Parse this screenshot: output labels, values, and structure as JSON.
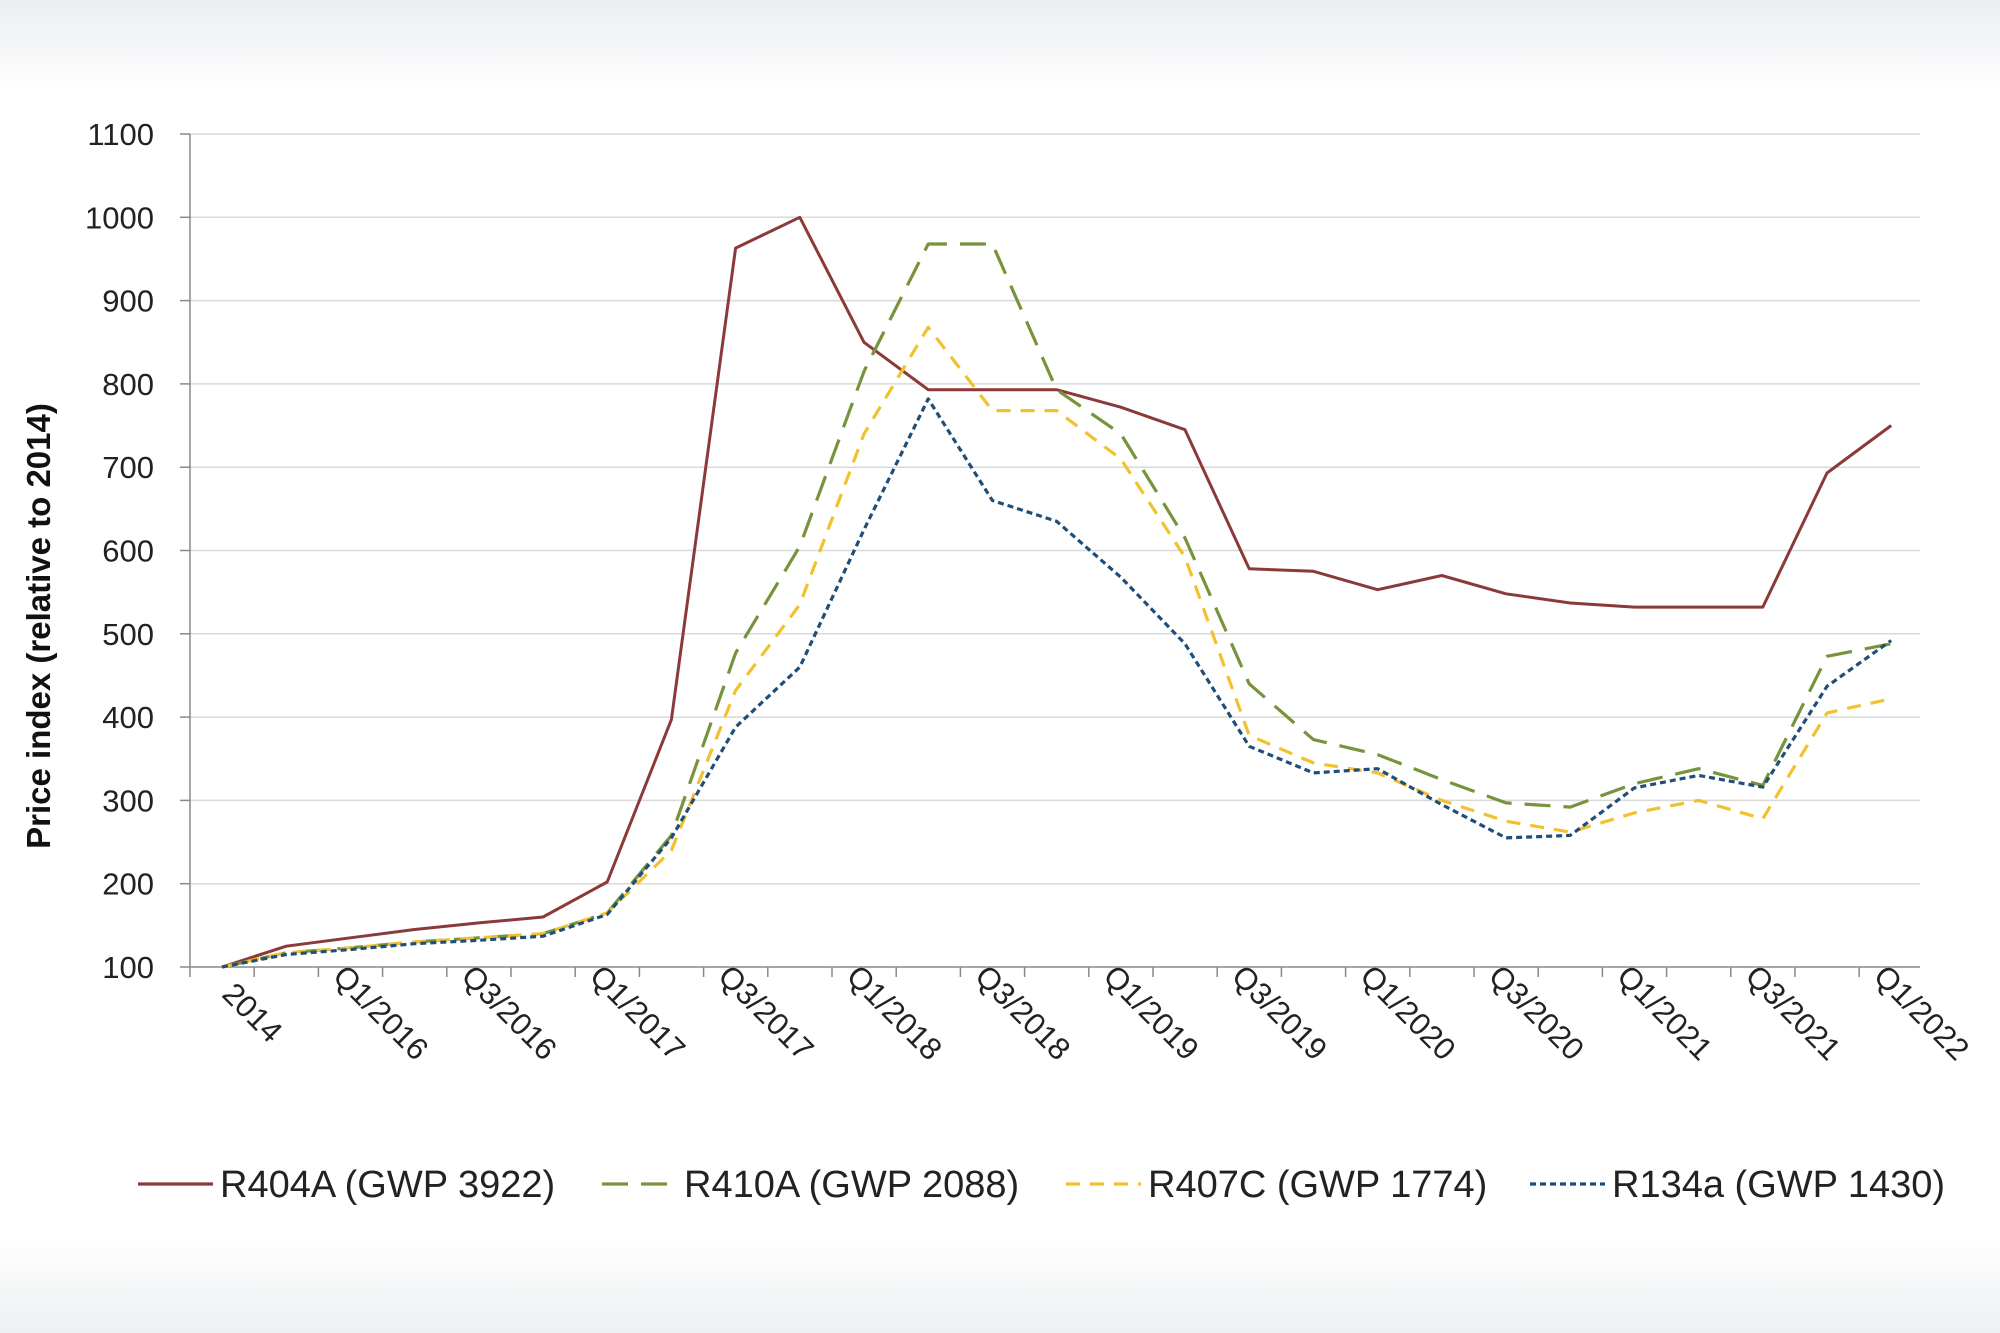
{
  "chart_data": {
    "type": "line",
    "title": "",
    "xlabel": "",
    "ylabel": "Price index (relative to 2014)",
    "ylim": [
      100,
      1100
    ],
    "yticks": [
      100,
      200,
      300,
      400,
      500,
      600,
      700,
      800,
      900,
      1000,
      1100
    ],
    "grid": true,
    "legend_position": "bottom",
    "x_tick_labels": [
      "2014",
      "Q1/2016",
      "Q3/2016",
      "Q1/2017",
      "Q3/2017",
      "Q1/2018",
      "Q3/2018",
      "Q1/2019",
      "Q3/2019",
      "Q1/2020",
      "Q3/2020",
      "Q1/2021",
      "Q3/2021",
      "Q1/2022"
    ],
    "series": [
      {
        "name": "R404A (GWP 3922)",
        "color": "#8B3A3A",
        "dash": "solid",
        "values": [
          100,
          125,
          135,
          145,
          153,
          160,
          202,
          397,
          963,
          1000,
          850,
          793,
          793,
          793,
          772,
          745,
          578,
          575,
          553,
          570,
          548,
          537,
          532,
          532,
          532,
          693,
          750
        ]
      },
      {
        "name": "R410A (GWP 2088)",
        "color": "#77933C",
        "dash": "long",
        "values": [
          100,
          117,
          123,
          130,
          135,
          140,
          165,
          258,
          477,
          605,
          815,
          968,
          968,
          793,
          740,
          615,
          440,
          373,
          355,
          325,
          297,
          292,
          320,
          338,
          318,
          473,
          488
        ]
      },
      {
        "name": "R407C (GWP 1774)",
        "color": "#F2C12E",
        "dash": "short",
        "values": [
          100,
          117,
          123,
          130,
          135,
          140,
          165,
          240,
          432,
          535,
          740,
          868,
          768,
          768,
          710,
          592,
          378,
          345,
          333,
          300,
          275,
          262,
          285,
          300,
          278,
          405,
          422
        ]
      },
      {
        "name": "R134a (GWP 1430)",
        "color": "#1F4E79",
        "dash": "dotted",
        "values": [
          100,
          115,
          121,
          128,
          132,
          137,
          163,
          255,
          388,
          460,
          625,
          782,
          660,
          635,
          568,
          488,
          365,
          333,
          338,
          295,
          255,
          258,
          315,
          330,
          316,
          437,
          492
        ]
      }
    ]
  }
}
